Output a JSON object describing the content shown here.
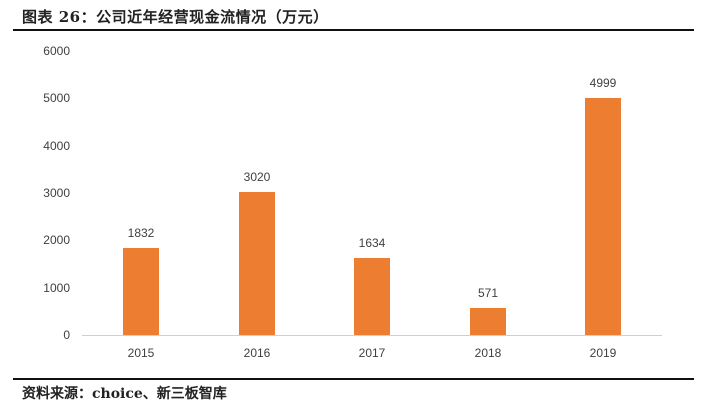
{
  "header": {
    "title": "图表 26：公司近年经营现金流情况（万元）"
  },
  "footer": {
    "source": "资料来源：choice、新三板智库"
  },
  "colors": {
    "bar": "#ED7D31",
    "axis": "#D0D0D0",
    "text": "#404040"
  },
  "chart_data": {
    "type": "bar",
    "title": "图表 26：公司近年经营现金流情况（万元）",
    "xlabel": "",
    "ylabel": "",
    "categories": [
      "2015",
      "2016",
      "2017",
      "2018",
      "2019"
    ],
    "values": [
      1832,
      3020,
      1634,
      571,
      4999
    ],
    "data_labels": [
      "1832",
      "3020",
      "1634",
      "571",
      "4999"
    ],
    "ylim": [
      0,
      6000
    ],
    "yticks": [
      "0",
      "1000",
      "2000",
      "3000",
      "4000",
      "5000",
      "6000"
    ],
    "grid": false,
    "legend": null,
    "series": [
      {
        "name": "经营现金流（万元）",
        "values": [
          1832,
          3020,
          1634,
          571,
          4999
        ],
        "color": "#ED7D31"
      }
    ]
  }
}
